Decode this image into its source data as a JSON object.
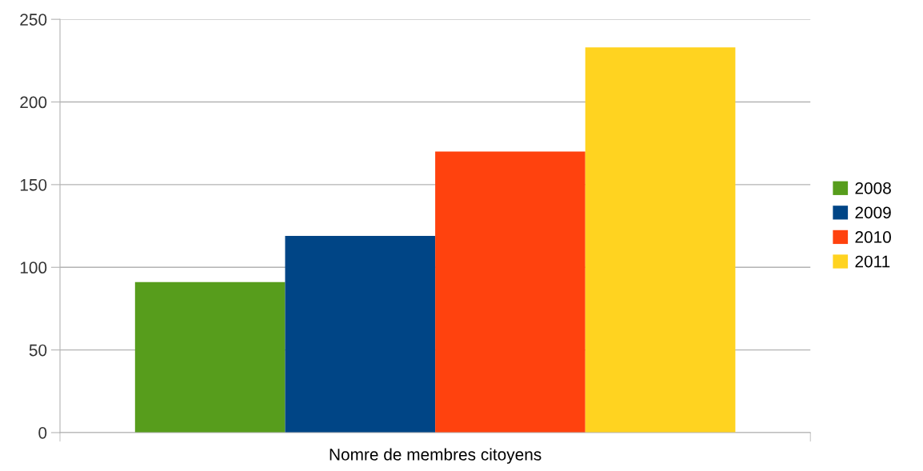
{
  "chart_data": {
    "type": "bar",
    "categories": [
      "Nomre de membres citoyens"
    ],
    "series": [
      {
        "name": "2008",
        "color": "#579d1c",
        "values": [
          91
        ]
      },
      {
        "name": "2009",
        "color": "#004586",
        "values": [
          119
        ]
      },
      {
        "name": "2010",
        "color": "#ff420e",
        "values": [
          170
        ]
      },
      {
        "name": "2011",
        "color": "#ffd320",
        "values": [
          233
        ]
      }
    ],
    "ylim": [
      0,
      250
    ],
    "yticks": [
      0,
      50,
      100,
      150,
      200,
      250
    ],
    "grid": "y",
    "legend": "right"
  }
}
